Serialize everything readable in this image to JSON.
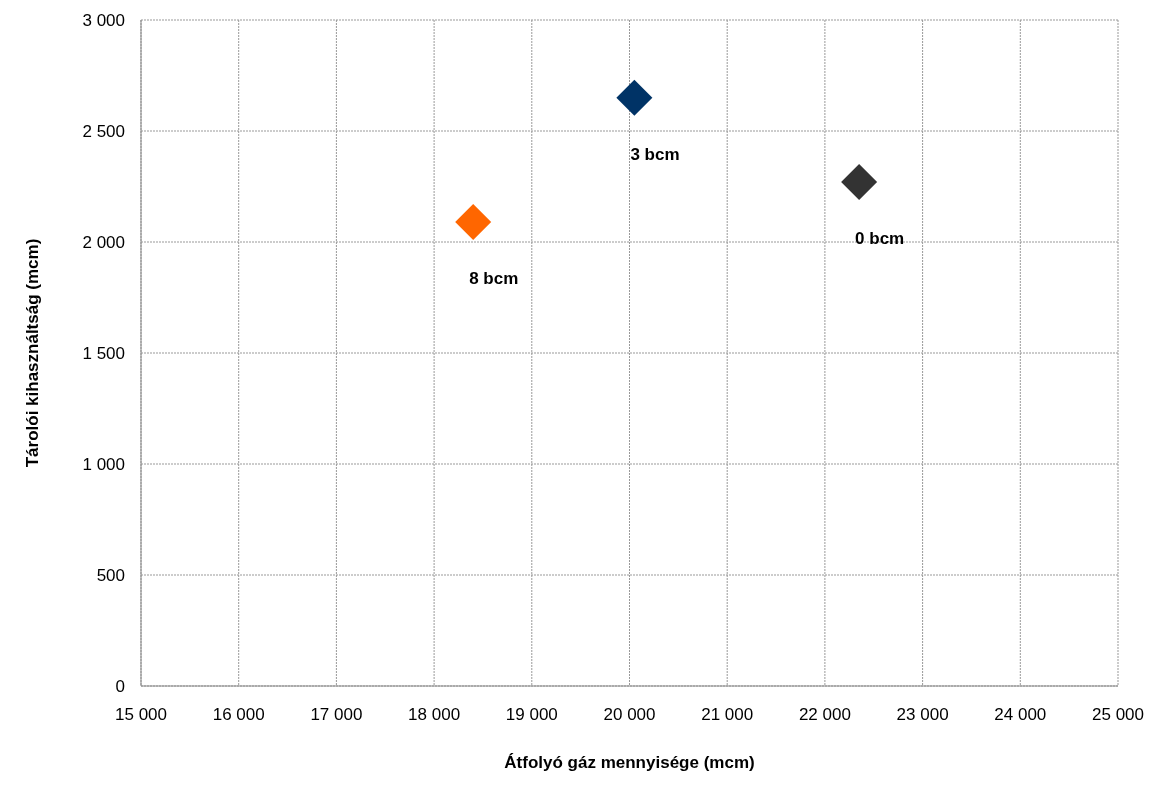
{
  "chart_data": {
    "type": "scatter",
    "xlabel": "Átfolyó gáz mennyisége (mcm)",
    "ylabel": "Tárolói kihasználtság (mcm)",
    "x": [
      18400,
      20050,
      22350
    ],
    "values": [
      2090,
      2650,
      2270
    ],
    "colors": [
      "#ff6600",
      "#003366",
      "#333333"
    ],
    "annotations": [
      {
        "text": "8 bcm",
        "x": 18400,
        "y": 2090
      },
      {
        "text": "3 bcm",
        "x": 20050,
        "y": 2650
      },
      {
        "text": "0 bcm",
        "x": 22350,
        "y": 2270
      }
    ],
    "marker": "diamond",
    "grid": true,
    "legend": false,
    "xlim": [
      15000,
      25000
    ],
    "xticks": [
      {
        "value": 15000,
        "label": "15 000"
      },
      {
        "value": 16000,
        "label": "16 000"
      },
      {
        "value": 17000,
        "label": "17 000"
      },
      {
        "value": 18000,
        "label": "18 000"
      },
      {
        "value": 19000,
        "label": "19 000"
      },
      {
        "value": 20000,
        "label": "20 000"
      },
      {
        "value": 21000,
        "label": "21 000"
      },
      {
        "value": 22000,
        "label": "22 000"
      },
      {
        "value": 23000,
        "label": "23 000"
      },
      {
        "value": 24000,
        "label": "24 000"
      },
      {
        "value": 25000,
        "label": "25 000"
      }
    ],
    "ylim": [
      0,
      3000
    ],
    "yticks": [
      0,
      500,
      {
        "value": 1000,
        "label": "1 000"
      },
      {
        "value": 1500,
        "label": "1 500"
      },
      {
        "value": 2000,
        "label": "2 000"
      },
      {
        "value": 2500,
        "label": "2 500"
      },
      {
        "value": 3000,
        "label": "3 000"
      }
    ]
  }
}
